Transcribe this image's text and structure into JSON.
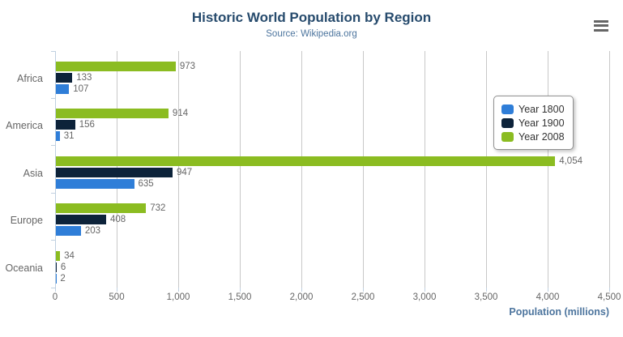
{
  "header": {
    "title": "Historic World Population by Region",
    "subtitle": "Source: Wikipedia.org"
  },
  "chart_data": {
    "type": "bar",
    "orientation": "horizontal",
    "title": "Historic World Population by Region",
    "subtitle": "Source: Wikipedia.org",
    "categories": [
      "Africa",
      "America",
      "Asia",
      "Europe",
      "Oceania"
    ],
    "series": [
      {
        "name": "Year 1800",
        "color": "#2f7ed8",
        "values": [
          107,
          31,
          635,
          203,
          2
        ]
      },
      {
        "name": "Year 1900",
        "color": "#0d233a",
        "values": [
          133,
          156,
          947,
          408,
          6
        ]
      },
      {
        "name": "Year 2008",
        "color": "#8bbc21",
        "values": [
          973,
          914,
          4054,
          732,
          34
        ]
      }
    ],
    "bar_order_top_to_bottom": [
      "Year 2008",
      "Year 1900",
      "Year 1800"
    ],
    "data_labels_shown": true,
    "xlabel": "Population (millions)",
    "ylabel": "",
    "xlim": [
      0,
      4500
    ],
    "x_ticks": [
      0,
      500,
      1000,
      1500,
      2000,
      2500,
      3000,
      3500,
      4000,
      4500
    ],
    "x_tick_labels": [
      "0",
      "500",
      "1,000",
      "1,500",
      "2,000",
      "2,500",
      "3,000",
      "3,500",
      "4,000",
      "4,500"
    ],
    "grid": true,
    "legend_position": "right-box"
  },
  "colors": {
    "title": "#274b6d",
    "subtitle": "#4d759e",
    "axis_labels": "#666666",
    "data_labels": "#666666",
    "gridline": "#c8c8c8",
    "axis_line": "#c0d0e0",
    "legend_border": "#909090",
    "menu_icon": "#666666"
  },
  "icons": {
    "context_menu": "hamburger-icon"
  }
}
